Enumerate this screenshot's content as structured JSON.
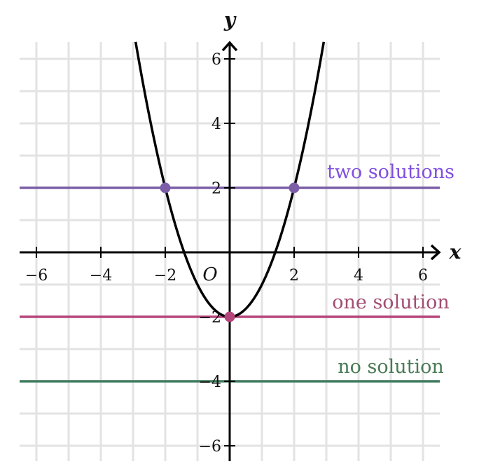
{
  "chart_data": {
    "type": "line",
    "x_label": "x",
    "y_label": "y",
    "origin_label": "O",
    "xlim": [
      -6.4,
      6.4
    ],
    "ylim": [
      -6.4,
      6.4
    ],
    "x_ticks": [
      -6,
      -4,
      -2,
      2,
      4,
      6
    ],
    "y_ticks": [
      -6,
      -4,
      -2,
      2,
      4,
      6
    ],
    "x_tick_labels": [
      "−6",
      "−4",
      "−2",
      "2",
      "4",
      "6"
    ],
    "y_tick_labels": [
      "−6",
      "−4",
      "−2",
      "2",
      "4",
      "6"
    ],
    "grid": true,
    "grid_step": 1,
    "colors": {
      "grid": "#e3e3e3",
      "axis": "#000000",
      "curve": "#000000",
      "two_solutions": "#7b5ea7",
      "one_solution": "#b5457a",
      "no_solution": "#3f7a5e",
      "two_label": "#7f4fe0",
      "one_label": "#a34d72",
      "no_label": "#4a7a55"
    },
    "curve": {
      "equation": "y = x^2 - 2",
      "a": 1,
      "b": 0,
      "c": -2
    },
    "horizontal_lines": [
      {
        "y": 2,
        "label": "two solutions",
        "color_key": "two_solutions",
        "label_color_key": "two_label",
        "points": [
          [
            -2,
            2
          ],
          [
            2,
            2
          ]
        ]
      },
      {
        "y": -2,
        "label": "one solution",
        "color_key": "one_solution",
        "label_color_key": "one_label",
        "points": [
          [
            0,
            -2
          ]
        ]
      },
      {
        "y": -4,
        "label": "no solution",
        "color_key": "no_solution",
        "label_color_key": "no_label",
        "points": []
      }
    ]
  }
}
